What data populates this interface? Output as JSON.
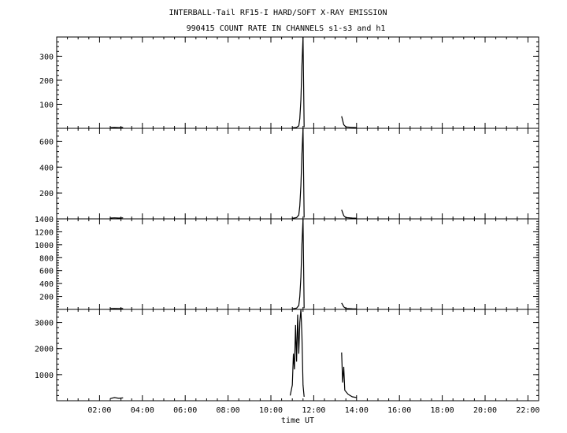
{
  "title_line1": "INTERBALL-Tail RF15-I HARD/SOFT X-RAY EMISSION",
  "title_line2": "990415  COUNT RATE IN CHANNELS s1-s3 and h1",
  "chart_data": {
    "type": "line",
    "xlabel": "time UT",
    "xlim": [
      0,
      22.5
    ],
    "x_ticks": [
      2,
      4,
      6,
      8,
      10,
      12,
      14,
      16,
      18,
      20,
      22
    ],
    "x_tick_labels": [
      "02:00",
      "04:00",
      "06:00",
      "08:00",
      "10:00",
      "12:00",
      "14:00",
      "16:00",
      "18:00",
      "20:00",
      "22:00"
    ],
    "grid": false,
    "panels": [
      {
        "ylim": [
          0,
          380
        ],
        "yticks": [
          100,
          200,
          300
        ],
        "ytick_labels": [
          "100",
          "200",
          "300"
        ],
        "series": [
          {
            "x": [
              2.5,
              2.7,
              2.9,
              3.1
            ],
            "y": [
              3,
              4,
              3,
              4
            ]
          },
          {
            "x": [
              11.0,
              11.2,
              11.3,
              11.35,
              11.4,
              11.45,
              11.5,
              11.55
            ],
            "y": [
              2,
              4,
              10,
              40,
              120,
              260,
              380,
              5
            ]
          },
          {
            "x": [
              13.3,
              13.4,
              13.5,
              13.8,
              14.0
            ],
            "y": [
              50,
              15,
              6,
              4,
              3
            ]
          }
        ]
      },
      {
        "ylim": [
          0,
          700
        ],
        "yticks": [
          200,
          400,
          600
        ],
        "ytick_labels": [
          "200",
          "400",
          "600"
        ],
        "series": [
          {
            "x": [
              2.5,
              2.7,
              2.9,
              3.1
            ],
            "y": [
              6,
              8,
              6,
              8
            ]
          },
          {
            "x": [
              11.0,
              11.2,
              11.3,
              11.35,
              11.4,
              11.45,
              11.5,
              11.55
            ],
            "y": [
              4,
              10,
              30,
              100,
              260,
              500,
              700,
              10
            ]
          },
          {
            "x": [
              13.3,
              13.4,
              13.5,
              13.8,
              14.0
            ],
            "y": [
              70,
              25,
              10,
              6,
              5
            ]
          }
        ]
      },
      {
        "ylim": [
          0,
          1400
        ],
        "yticks": [
          200,
          400,
          600,
          800,
          1000,
          1200,
          1400
        ],
        "ytick_labels": [
          "200",
          "400",
          "600",
          "800",
          "1000",
          "1200",
          "1400"
        ],
        "series": [
          {
            "x": [
              2.5,
              2.7,
              2.9,
              3.1
            ],
            "y": [
              12,
              15,
              12,
              15
            ]
          },
          {
            "x": [
              11.0,
              11.2,
              11.3,
              11.35,
              11.4,
              11.45,
              11.5,
              11.55
            ],
            "y": [
              8,
              20,
              60,
              200,
              500,
              1000,
              1400,
              20
            ]
          },
          {
            "x": [
              13.3,
              13.4,
              13.5,
              13.8,
              14.0
            ],
            "y": [
              100,
              40,
              15,
              10,
              8
            ]
          }
        ]
      },
      {
        "ylim": [
          0,
          3500
        ],
        "yticks": [
          1000,
          2000,
          3000
        ],
        "ytick_labels": [
          "1000",
          "2000",
          "3000"
        ],
        "series": [
          {
            "x": [
              2.5,
              2.7,
              2.9,
              3.1
            ],
            "y": [
              80,
              120,
              90,
              110
            ]
          },
          {
            "x": [
              10.9,
              11.0,
              11.05,
              11.1,
              11.15,
              11.2,
              11.25,
              11.3,
              11.35,
              11.4,
              11.45,
              11.5,
              11.55
            ],
            "y": [
              200,
              600,
              1800,
              1200,
              2900,
              1500,
              3300,
              1800,
              3000,
              3500,
              2500,
              600,
              150
            ]
          },
          {
            "x": [
              13.3,
              13.35,
              13.4,
              13.45,
              13.5,
              13.6,
              13.7,
              13.8,
              14.0
            ],
            "y": [
              1850,
              700,
              1300,
              400,
              350,
              250,
              200,
              150,
              120
            ]
          }
        ]
      }
    ]
  }
}
